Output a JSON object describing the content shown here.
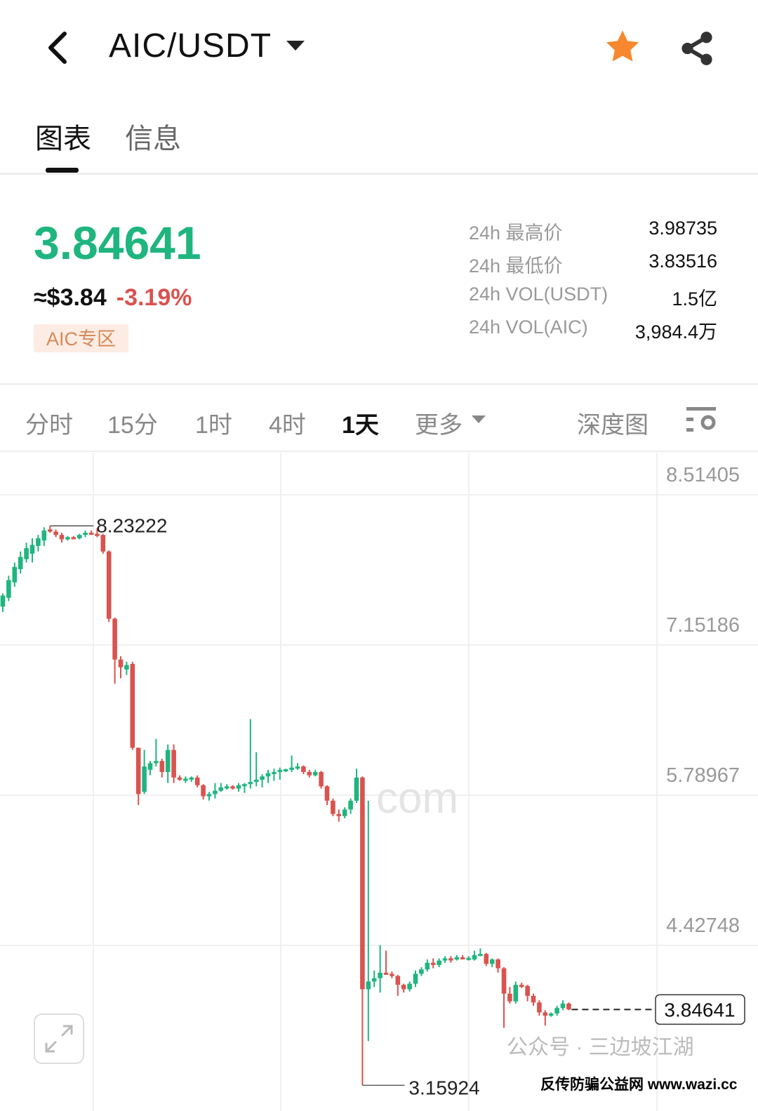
{
  "header": {
    "pair": "AIC/USDT",
    "back_icon": "chevron-left-icon",
    "favorite_icon": "star-icon",
    "favorite_color": "#f7882f",
    "share_icon": "share-icon"
  },
  "tabs": [
    {
      "label": "图表",
      "active": true
    },
    {
      "label": "信息",
      "active": false
    }
  ],
  "ticker": {
    "last_price": "3.84641",
    "usd_price": "≈$3.84",
    "change": "-3.19%",
    "zone_badge": "AIC专区",
    "up_color": "#1fb57f",
    "down_color": "#d9534f"
  },
  "stats": [
    {
      "label": "24h 最高价",
      "value": "3.98735"
    },
    {
      "label": "24h 最低价",
      "value": "3.83516"
    },
    {
      "label": "24h VOL(USDT)",
      "value": "1.5亿"
    },
    {
      "label": "24h VOL(AIC)",
      "value": "3,984.4万"
    }
  ],
  "timeframes": [
    {
      "label": "分时",
      "active": false
    },
    {
      "label": "15分",
      "active": false
    },
    {
      "label": "1时",
      "active": false
    },
    {
      "label": "4时",
      "active": false
    },
    {
      "label": "1天",
      "active": true
    },
    {
      "label": "更多",
      "active": false
    }
  ],
  "depth_label": "深度图",
  "settings_icon": "chart-settings-icon",
  "expand_icon": "expand-icon",
  "watermarks": {
    "logo": "com",
    "wechat": "公众号 · 三边坡江湖",
    "site": "反传防骗公益网 www.wazi.cc"
  },
  "chart_data": {
    "type": "candlestick",
    "interval": "1天",
    "y_ticks": [
      "8.51405",
      "7.15186",
      "5.78967",
      "4.42748"
    ],
    "ylim": [
      3.0,
      8.8
    ],
    "max_label": "8.23222",
    "min_label": "3.15924",
    "current_price_label": "3.84641",
    "grid": true,
    "candles_ohlc": [
      [
        7.5,
        7.62,
        7.45,
        7.6
      ],
      [
        7.58,
        7.78,
        7.55,
        7.74
      ],
      [
        7.72,
        7.9,
        7.68,
        7.86
      ],
      [
        7.84,
        8.0,
        7.8,
        7.95
      ],
      [
        7.93,
        8.08,
        7.9,
        8.03
      ],
      [
        7.98,
        8.12,
        7.9,
        8.06
      ],
      [
        8.05,
        8.15,
        8.0,
        8.12
      ],
      [
        8.1,
        8.22,
        8.05,
        8.19
      ],
      [
        8.2,
        8.23222,
        8.17,
        8.18
      ],
      [
        8.18,
        8.2,
        8.13,
        8.15
      ],
      [
        8.15,
        8.17,
        8.08,
        8.11
      ],
      [
        8.11,
        8.14,
        8.1,
        8.13
      ],
      [
        8.13,
        8.14,
        8.11,
        8.12
      ],
      [
        8.12,
        8.16,
        8.11,
        8.15
      ],
      [
        8.15,
        8.19,
        8.13,
        8.17
      ],
      [
        8.17,
        8.19,
        8.15,
        8.16
      ],
      [
        8.16,
        8.21,
        8.13,
        8.15
      ],
      [
        8.15,
        8.16,
        7.98,
        8.0
      ],
      [
        8.0,
        8.01,
        7.36,
        7.39
      ],
      [
        7.39,
        7.4,
        6.8,
        7.02
      ],
      [
        7.02,
        7.05,
        6.85,
        6.95
      ],
      [
        6.93,
        7.0,
        6.88,
        6.97
      ],
      [
        6.98,
        7.0,
        6.2,
        6.22
      ],
      [
        6.22,
        6.22,
        5.7,
        5.8
      ],
      [
        5.82,
        6.2,
        5.8,
        6.05
      ],
      [
        6.02,
        6.1,
        5.97,
        6.08
      ],
      [
        6.08,
        6.3,
        6.05,
        6.1
      ],
      [
        6.1,
        6.12,
        5.95,
        6.0
      ],
      [
        6.0,
        6.25,
        5.9,
        6.2
      ],
      [
        6.2,
        6.25,
        5.9,
        5.95
      ],
      [
        5.95,
        5.97,
        5.92,
        5.93
      ],
      [
        5.93,
        5.96,
        5.9,
        5.94
      ],
      [
        5.94,
        5.96,
        5.91,
        5.95
      ],
      [
        5.95,
        5.97,
        5.86,
        5.88
      ],
      [
        5.88,
        5.89,
        5.75,
        5.78
      ],
      [
        5.78,
        5.82,
        5.74,
        5.8
      ],
      [
        5.8,
        5.9,
        5.76,
        5.83
      ],
      [
        5.83,
        5.9,
        5.82,
        5.86
      ],
      [
        5.86,
        5.89,
        5.84,
        5.87
      ],
      [
        5.87,
        5.88,
        5.84,
        5.85
      ],
      [
        5.85,
        5.9,
        5.82,
        5.88
      ],
      [
        5.88,
        5.9,
        5.81,
        5.89
      ],
      [
        5.89,
        6.48,
        5.85,
        5.91
      ],
      [
        5.91,
        6.18,
        5.87,
        5.93
      ],
      [
        5.93,
        5.98,
        5.86,
        5.96
      ],
      [
        5.96,
        6.02,
        5.9,
        5.99
      ],
      [
        5.99,
        6.03,
        5.92,
        6.0
      ],
      [
        6.0,
        6.04,
        5.93,
        6.02
      ],
      [
        6.02,
        6.03,
        6.0,
        6.025
      ],
      [
        6.02,
        6.15,
        6.0,
        6.04
      ],
      [
        6.04,
        6.08,
        6.02,
        6.05
      ],
      [
        6.05,
        6.06,
        5.98,
        6.0
      ],
      [
        6.0,
        6.02,
        5.95,
        5.97
      ],
      [
        5.97,
        6.02,
        5.96,
        6.0
      ],
      [
        6.0,
        6.01,
        5.85,
        5.87
      ],
      [
        5.87,
        5.88,
        5.7,
        5.74
      ],
      [
        5.74,
        5.76,
        5.6,
        5.62
      ],
      [
        5.62,
        5.66,
        5.55,
        5.6
      ],
      [
        5.6,
        5.68,
        5.58,
        5.66
      ],
      [
        5.66,
        5.76,
        5.62,
        5.74
      ],
      [
        5.74,
        6.03,
        5.72,
        5.95
      ],
      [
        5.95,
        5.96,
        3.15924,
        4.03
      ],
      [
        4.03,
        5.74,
        3.56,
        4.1
      ],
      [
        4.1,
        4.2,
        4.05,
        4.13
      ],
      [
        4.13,
        4.43,
        4.0,
        4.18
      ],
      [
        4.18,
        4.38,
        4.16,
        4.17
      ],
      [
        4.17,
        4.19,
        4.13,
        4.15
      ],
      [
        4.15,
        4.16,
        3.97,
        4.07
      ],
      [
        4.07,
        4.08,
        4.0,
        4.03
      ],
      [
        4.03,
        4.1,
        4.01,
        4.08
      ],
      [
        4.08,
        4.2,
        4.05,
        4.17
      ],
      [
        4.17,
        4.23,
        4.15,
        4.21
      ],
      [
        4.21,
        4.3,
        4.19,
        4.27
      ],
      [
        4.27,
        4.31,
        4.22,
        4.25
      ],
      [
        4.25,
        4.31,
        4.23,
        4.29
      ],
      [
        4.29,
        4.33,
        4.27,
        4.31
      ],
      [
        4.31,
        4.33,
        4.27,
        4.3
      ],
      [
        4.3,
        4.34,
        4.29,
        4.32
      ],
      [
        4.32,
        4.34,
        4.3,
        4.31
      ],
      [
        4.31,
        4.33,
        4.29,
        4.315
      ],
      [
        4.3,
        4.38,
        4.29,
        4.34
      ],
      [
        4.34,
        4.4,
        4.33,
        4.35
      ],
      [
        4.35,
        4.36,
        4.24,
        4.26
      ],
      [
        4.26,
        4.31,
        4.23,
        4.3
      ],
      [
        4.3,
        4.31,
        4.18,
        4.22
      ],
      [
        4.22,
        4.23,
        3.68,
        3.99
      ],
      [
        3.99,
        4.05,
        3.9,
        3.92
      ],
      [
        3.92,
        4.1,
        3.9,
        4.07
      ],
      [
        4.07,
        4.09,
        4.04,
        4.06
      ],
      [
        4.06,
        4.07,
        3.92,
        3.97
      ],
      [
        3.97,
        3.99,
        3.88,
        3.91
      ],
      [
        3.91,
        3.93,
        3.79,
        3.82
      ],
      [
        3.82,
        3.84,
        3.7,
        3.79
      ],
      [
        3.79,
        3.82,
        3.78,
        3.81
      ],
      [
        3.81,
        3.88,
        3.79,
        3.86
      ],
      [
        3.86,
        3.93,
        3.84,
        3.9
      ],
      [
        3.9,
        3.91,
        3.84,
        3.84641
      ]
    ]
  }
}
